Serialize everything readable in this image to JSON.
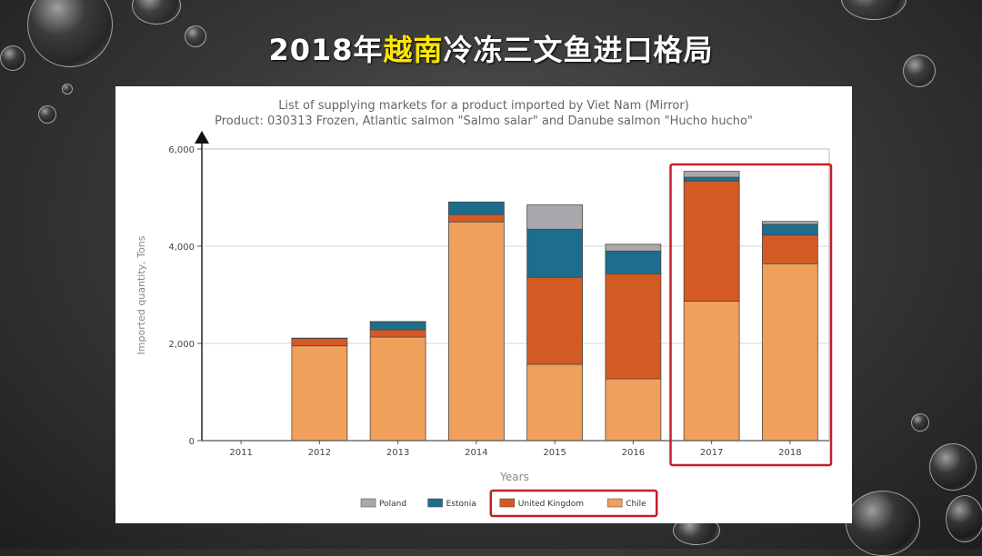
{
  "slide": {
    "title_part1": "2018年",
    "title_highlight": "越南",
    "title_part2": "冷冻三文鱼进口格局"
  },
  "chart_data": {
    "type": "bar",
    "stacked": true,
    "title": "List of supplying markets for a product imported by Viet Nam (Mirror)",
    "subtitle": "Product: 030313 Frozen, Atlantic salmon \"Salmo salar\" and Danube salmon \"Hucho hucho\"",
    "xlabel": "Years",
    "ylabel": "Imported quantity, Tons",
    "ylim": [
      0,
      6000
    ],
    "yticks": [
      "0",
      "2,000",
      "4,000",
      "6,000"
    ],
    "ytick_values": [
      0,
      2000,
      4000,
      6000
    ],
    "categories": [
      "2011",
      "2012",
      "2013",
      "2014",
      "2015",
      "2016",
      "2017",
      "2018"
    ],
    "series": [
      {
        "name": "Chile",
        "color": "#f0a05a",
        "values": [
          0,
          1950,
          2130,
          4500,
          1570,
          1270,
          2870,
          3640
        ]
      },
      {
        "name": "United Kingdom",
        "color": "#d45a24",
        "values": [
          0,
          150,
          150,
          150,
          1790,
          2160,
          2470,
          590
        ]
      },
      {
        "name": "Estonia",
        "color": "#1c6e8c",
        "values": [
          0,
          10,
          160,
          260,
          990,
          470,
          80,
          220
        ]
      },
      {
        "name": "Poland",
        "color": "#a9a9ad",
        "values": [
          0,
          0,
          10,
          0,
          500,
          140,
          120,
          60
        ]
      }
    ],
    "legend_order": [
      "Poland",
      "Estonia",
      "United Kingdom",
      "Chile"
    ],
    "legend_position": "bottom",
    "grid": true,
    "highlighted_categories": [
      "2017",
      "2018"
    ],
    "highlighted_legend": [
      "United Kingdom",
      "Chile"
    ],
    "highlight_color": "#c0202a"
  }
}
